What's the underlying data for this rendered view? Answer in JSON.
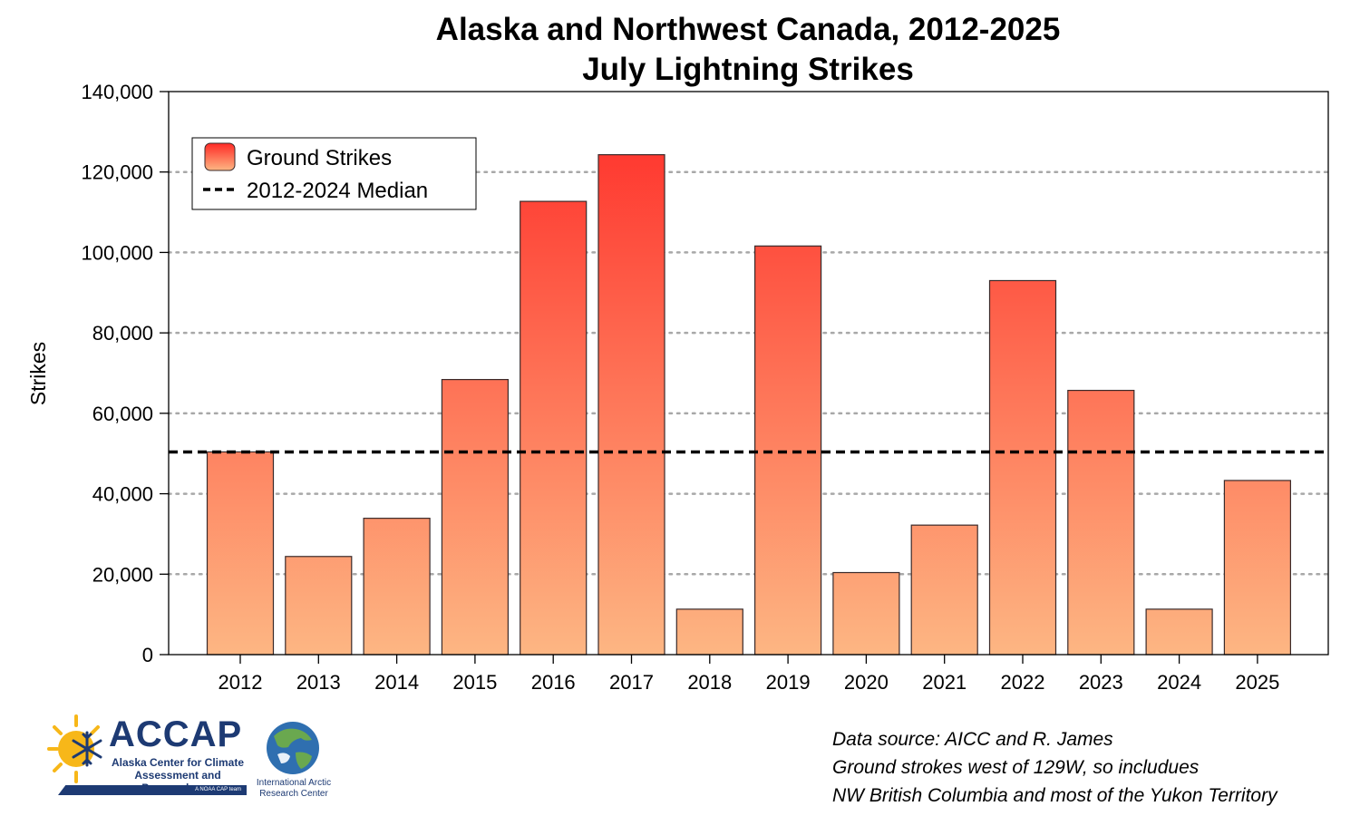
{
  "chart_data": {
    "type": "bar",
    "title": "Alaska and Northwest Canada, 2012-2025",
    "subtitle": "July Lightning Strikes",
    "xlabel": "",
    "ylabel": "Strikes",
    "ylim": [
      0,
      140000
    ],
    "yticks": [
      0,
      20000,
      40000,
      60000,
      80000,
      100000,
      120000,
      140000
    ],
    "ytick_labels": [
      "0",
      "20,000",
      "40,000",
      "60,000",
      "80,000",
      "100,000",
      "120,000",
      "140,000"
    ],
    "categories": [
      "2012",
      "2013",
      "2014",
      "2015",
      "2016",
      "2017",
      "2018",
      "2019",
      "2020",
      "2021",
      "2022",
      "2023",
      "2024",
      "2025"
    ],
    "series": [
      {
        "name": "Ground Strikes",
        "values": [
          50400,
          24400,
          33900,
          68400,
          112700,
          124300,
          11300,
          101600,
          20400,
          32200,
          93000,
          65700,
          11300,
          43300
        ]
      }
    ],
    "reference_lines": [
      {
        "name": "2012-2024 Median",
        "value": 50400,
        "style": "dashed",
        "color": "#000000"
      }
    ],
    "grid": "horizontal dotted",
    "legend_position": "top-left",
    "colors": {
      "bar_low": "#fdb683",
      "bar_high": "#ff2a26",
      "bar_outline": "#3a2a2a",
      "grid": "#a8a8a8"
    }
  },
  "footnote": {
    "line1": "Data source: AICC and R. James",
    "line2": "Ground strokes west of 129W, so includues",
    "line3": "NW British Columbia and most of the Yukon Territory"
  },
  "logos": {
    "accap_name": "ACCAP",
    "accap_full": "Alaska Center for Climate Assessment and Preparedness",
    "accap_tagline": "A NOAA CAP team",
    "iarc_name": "International Arctic Research Center",
    "accap_color": "#1d3a73",
    "icons": [
      "sun-snowflake-icon",
      "globe-icon"
    ]
  }
}
